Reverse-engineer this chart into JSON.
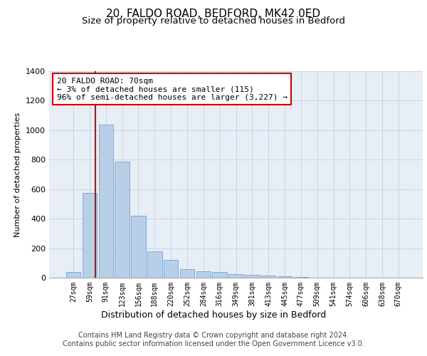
{
  "title1": "20, FALDO ROAD, BEDFORD, MK42 0ED",
  "title2": "Size of property relative to detached houses in Bedford",
  "xlabel": "Distribution of detached houses by size in Bedford",
  "ylabel": "Number of detached properties",
  "categories": [
    "27sqm",
    "59sqm",
    "91sqm",
    "123sqm",
    "156sqm",
    "188sqm",
    "220sqm",
    "252sqm",
    "284sqm",
    "316sqm",
    "349sqm",
    "381sqm",
    "413sqm",
    "445sqm",
    "477sqm",
    "509sqm",
    "541sqm",
    "574sqm",
    "606sqm",
    "638sqm",
    "670sqm"
  ],
  "values": [
    40,
    575,
    1040,
    785,
    420,
    180,
    120,
    60,
    45,
    40,
    25,
    20,
    15,
    8,
    3,
    2,
    2,
    1,
    0,
    0,
    0
  ],
  "bar_color": "#b8cfe8",
  "bar_edge_color": "#6699cc",
  "grid_color": "#c8d4e4",
  "background_color": "#e8eef6",
  "annotation_text": "20 FALDO ROAD: 70sqm\n← 3% of detached houses are smaller (115)\n96% of semi-detached houses are larger (3,227) →",
  "annotation_box_color": "#ffffff",
  "annotation_box_edge": "#cc0000",
  "vline_color": "#cc0000",
  "ylim": [
    0,
    1400
  ],
  "yticks": [
    0,
    200,
    400,
    600,
    800,
    1000,
    1200,
    1400
  ],
  "footnote": "Contains HM Land Registry data © Crown copyright and database right 2024.\nContains public sector information licensed under the Open Government Licence v3.0.",
  "title1_fontsize": 11,
  "title2_fontsize": 9.5,
  "annotation_fontsize": 8,
  "footnote_fontsize": 7
}
